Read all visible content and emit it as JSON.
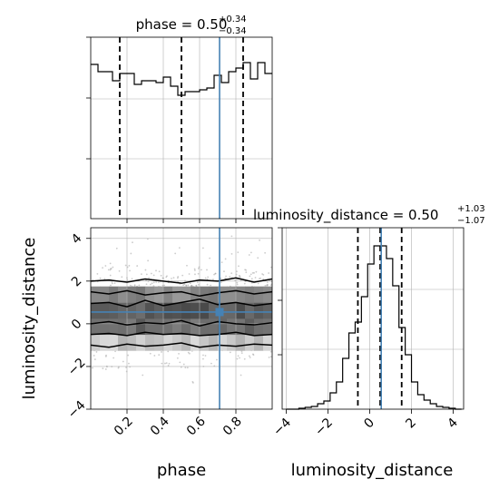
{
  "chart_data": [
    {
      "type": "histogram",
      "panel": "top-left",
      "title": "phase = 0.50",
      "title_sup": "+0.34",
      "title_sub": "−0.34",
      "xlim": [
        0,
        1
      ],
      "x_ticks": [
        0.2,
        0.4,
        0.6,
        0.8
      ],
      "grid": true,
      "bins": [
        0,
        0.04,
        0.08,
        0.12,
        0.16,
        0.2,
        0.24,
        0.28,
        0.32,
        0.36,
        0.4,
        0.44,
        0.48,
        0.52,
        0.56,
        0.6,
        0.64,
        0.68,
        0.72,
        0.76,
        0.8,
        0.84,
        0.88,
        0.92,
        0.96,
        1.0
      ],
      "counts": [
        0.85,
        0.81,
        0.81,
        0.76,
        0.8,
        0.8,
        0.74,
        0.76,
        0.76,
        0.75,
        0.78,
        0.73,
        0.68,
        0.7,
        0.7,
        0.71,
        0.72,
        0.79,
        0.75,
        0.81,
        0.83,
        0.86,
        0.77,
        0.86,
        0.8
      ],
      "quantile_lines": [
        0.16,
        0.5,
        0.84
      ],
      "truth_line": 0.71
    },
    {
      "type": "contour",
      "panel": "bottom-left",
      "xlabel": "phase",
      "ylabel": "luminosity_distance",
      "xlim": [
        0,
        1
      ],
      "ylim": [
        -4,
        4.5
      ],
      "x_ticks": [
        0.2,
        0.4,
        0.6,
        0.8
      ],
      "y_ticks": [
        4,
        2,
        0,
        -2,
        -4
      ],
      "x_tick_labels": [
        "0.2",
        "0.4",
        "0.6",
        "0.8"
      ],
      "y_tick_labels": [
        "4",
        "2",
        "0",
        "−2",
        "−4"
      ],
      "grid": true,
      "truth": {
        "x": 0.71,
        "y": 0.55
      },
      "contour_levels": [
        {
          "x": [
            0.0,
            0.1,
            0.2,
            0.3,
            0.4,
            0.5,
            0.6,
            0.7,
            0.8,
            0.9,
            1.0
          ],
          "y_upper": [
            2.0,
            2.05,
            1.95,
            2.1,
            2.0,
            1.9,
            2.05,
            2.0,
            2.15,
            1.95,
            2.1
          ],
          "y_lower": [
            -1.0,
            -1.1,
            -0.95,
            -1.05,
            -1.0,
            -0.9,
            -1.1,
            -1.0,
            -1.05,
            -0.95,
            -1.0
          ]
        },
        {
          "x": [
            0.0,
            0.1,
            0.2,
            0.3,
            0.4,
            0.5,
            0.6,
            0.7,
            0.8,
            0.9,
            1.0
          ],
          "y_upper": [
            1.5,
            1.4,
            1.55,
            1.35,
            1.45,
            1.5,
            1.3,
            1.45,
            1.55,
            1.4,
            1.5
          ],
          "y_lower": [
            -0.5,
            -0.45,
            -0.55,
            -0.4,
            -0.5,
            -0.45,
            -0.55,
            -0.5,
            -0.4,
            -0.55,
            -0.5
          ]
        },
        {
          "x": [
            0.0,
            0.1,
            0.2,
            0.3,
            0.4,
            0.5,
            0.6,
            0.7,
            0.8,
            0.9,
            1.0
          ],
          "y_upper": [
            0.95,
            1.0,
            0.8,
            1.1,
            0.85,
            1.0,
            1.15,
            0.9,
            1.0,
            0.85,
            0.95
          ],
          "y_lower": [
            0.0,
            0.1,
            -0.05,
            0.05,
            0.0,
            0.15,
            -0.1,
            0.1,
            0.0,
            -0.05,
            0.05
          ]
        }
      ]
    },
    {
      "type": "histogram",
      "panel": "bottom-right",
      "title": "luminosity_distance = 0.50",
      "title_sup": "+1.03",
      "title_sub": "−1.07",
      "xlabel": "luminosity_distance",
      "xlim": [
        -4.2,
        4.5
      ],
      "x_ticks": [
        -4,
        -2,
        0,
        2,
        4
      ],
      "x_tick_labels": [
        "−4",
        "−2",
        "0",
        "2",
        "4"
      ],
      "grid": true,
      "bins": [
        -4.0,
        -3.7,
        -3.4,
        -3.1,
        -2.8,
        -2.5,
        -2.2,
        -1.9,
        -1.6,
        -1.3,
        -1.0,
        -0.7,
        -0.4,
        -0.1,
        0.2,
        0.5,
        0.8,
        1.1,
        1.4,
        1.7,
        2.0,
        2.3,
        2.6,
        2.9,
        3.2,
        3.5,
        3.8,
        4.1,
        4.4
      ],
      "counts": [
        0.0,
        0.0,
        0.005,
        0.01,
        0.015,
        0.03,
        0.045,
        0.09,
        0.15,
        0.28,
        0.42,
        0.48,
        0.62,
        0.8,
        0.9,
        0.9,
        0.83,
        0.68,
        0.45,
        0.3,
        0.15,
        0.08,
        0.05,
        0.03,
        0.015,
        0.01,
        0.005,
        0.0
      ],
      "quantile_lines": [
        -0.57,
        0.5,
        1.53
      ],
      "truth_line": 0.55
    }
  ]
}
